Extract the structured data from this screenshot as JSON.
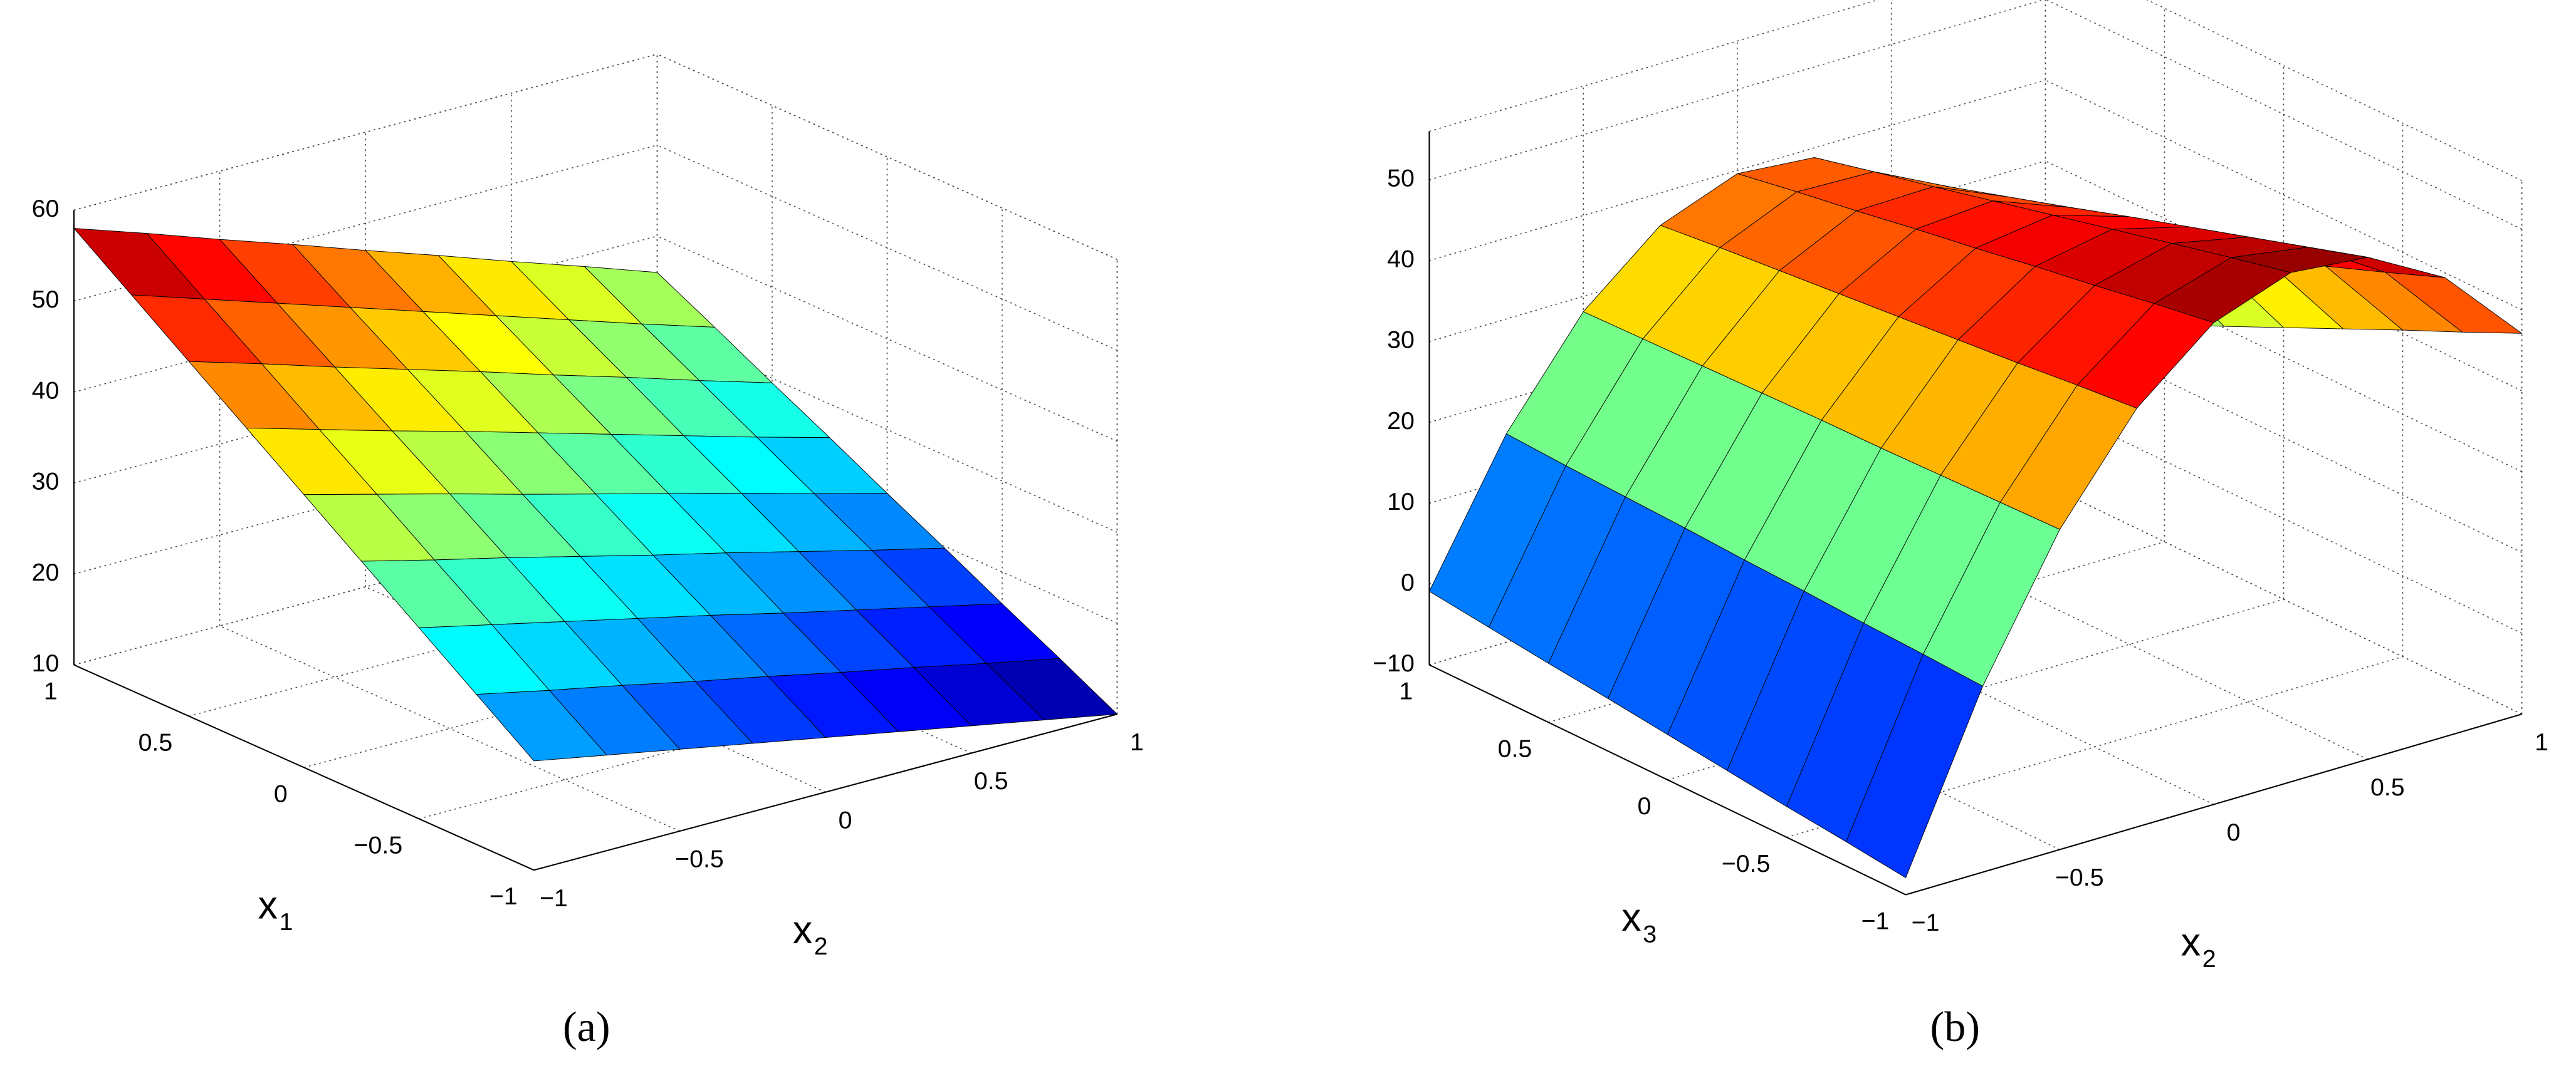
{
  "chart_data": [
    {
      "type": "surface",
      "panel_label": "(a)",
      "colormap": "jet",
      "grid": true,
      "xlabel": {
        "base": "x",
        "sub": "2"
      },
      "ylabel": {
        "base": "x",
        "sub": "1"
      },
      "x": [
        -1,
        -0.75,
        -0.5,
        -0.25,
        0,
        0.25,
        0.5,
        0.75,
        1
      ],
      "y": [
        -1,
        -0.75,
        -0.5,
        -0.25,
        0,
        0.25,
        0.5,
        0.75,
        1
      ],
      "z": [
        [
          22,
          20.5,
          19,
          17.5,
          16,
          14.5,
          13,
          11.5,
          10
        ],
        [
          26.5,
          24.8,
          23.2,
          21.5,
          19.9,
          18.2,
          16.6,
          14.9,
          13.3
        ],
        [
          31,
          29.2,
          27.4,
          25.6,
          23.8,
          21.9,
          20.1,
          18.3,
          16.5
        ],
        [
          35.5,
          33.5,
          31.6,
          29.6,
          27.6,
          25.7,
          23.7,
          21.7,
          19.8
        ],
        [
          40,
          37.9,
          35.8,
          33.6,
          31.5,
          29.4,
          27.3,
          25.1,
          23
        ],
        [
          44.5,
          42.2,
          39.9,
          37.7,
          35.4,
          33.1,
          30.8,
          28.5,
          26.3
        ],
        [
          49,
          46.6,
          44.1,
          41.7,
          39.3,
          36.8,
          34.4,
          31.9,
          29.5
        ],
        [
          53.5,
          50.9,
          48.3,
          45.7,
          43.1,
          40.5,
          37.9,
          35.3,
          32.8
        ],
        [
          58,
          55.3,
          52.5,
          49.8,
          47,
          44.3,
          41.5,
          38.8,
          36
        ]
      ],
      "xlim": [
        -1,
        1
      ],
      "ylim": [
        -1,
        1
      ],
      "zlim": [
        10,
        60
      ],
      "xticks": [
        {
          "value": -1,
          "label": "−1"
        },
        {
          "value": -0.5,
          "label": "−0.5"
        },
        0,
        0.5,
        1
      ],
      "yticks": [
        {
          "value": -1,
          "label": "−1"
        },
        {
          "value": -0.5,
          "label": "−0.5"
        },
        0,
        0.5,
        1
      ],
      "zticks": [
        10,
        20,
        30,
        40,
        50,
        60
      ]
    },
    {
      "type": "surface",
      "panel_label": "(b)",
      "colormap": "jet",
      "grid": true,
      "xlabel": {
        "base": "x",
        "sub": "2"
      },
      "ylabel": {
        "base": "x",
        "sub": "3"
      },
      "x": [
        -1,
        -0.75,
        -0.5,
        -0.25,
        0,
        0.25,
        0.5,
        0.75,
        1
      ],
      "y": [
        -1,
        -0.75,
        -0.5,
        -0.25,
        0,
        0.25,
        0.5,
        0.75,
        1
      ],
      "z": [
        [
          -7.9,
          13.0,
          29.6,
          41.8,
          49.6,
          53.0,
          52.1,
          46.8,
          37.1
        ],
        [
          -7.0,
          13.4,
          29.4,
          41.1,
          48.4,
          51.3,
          49.8,
          43.9,
          33.7
        ],
        [
          -6.2,
          13.7,
          29.2,
          40.3,
          47.1,
          49.5,
          47.5,
          41.1,
          30.4
        ],
        [
          -5.3,
          14.1,
          29.0,
          39.6,
          45.9,
          47.7,
          45.2,
          38.3,
          27.0
        ],
        [
          -4.4,
          14.4,
          28.9,
          38.9,
          44.6,
          45.9,
          42.9,
          35.4,
          23.6
        ],
        [
          -3.5,
          14.8,
          28.7,
          38.2,
          43.4,
          44.1,
          40.5,
          32.6,
          20.2
        ],
        [
          -2.7,
          15.1,
          28.5,
          37.5,
          42.1,
          42.3,
          38.2,
          29.7,
          16.9
        ],
        [
          -1.8,
          15.4,
          28.3,
          36.8,
          40.9,
          40.6,
          35.9,
          26.9,
          13.5
        ],
        [
          -0.9,
          15.8,
          28.1,
          36.0,
          39.6,
          38.8,
          33.6,
          24.0,
          10.1
        ]
      ],
      "xlim": [
        -1,
        1
      ],
      "ylim": [
        -1,
        1
      ],
      "zlim": [
        -10,
        56
      ],
      "xticks": [
        {
          "value": -1,
          "label": "−1"
        },
        {
          "value": -0.5,
          "label": "−0.5"
        },
        0,
        0.5,
        1
      ],
      "yticks": [
        {
          "value": -1,
          "label": "−1"
        },
        {
          "value": -0.5,
          "label": "−0.5"
        },
        0,
        0.5,
        1
      ],
      "zticks": [
        {
          "value": -10,
          "label": "−10"
        },
        0,
        10,
        20,
        30,
        40,
        50
      ]
    }
  ]
}
